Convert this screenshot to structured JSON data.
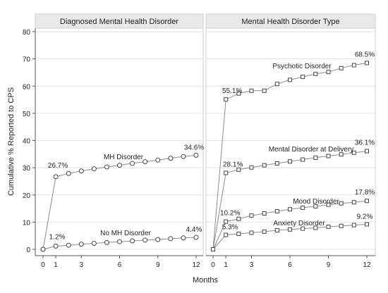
{
  "chart_data": [
    {
      "type": "line",
      "title": "Diagnosed Mental Health Disorder",
      "ylabel": "Cumulative % Reported to CPS",
      "xlabel": "Months",
      "ylim": [
        0,
        80
      ],
      "xlim": [
        0,
        12
      ],
      "yticks": [
        "0",
        "10",
        "20",
        "30",
        "40",
        "50",
        "60",
        "70",
        "80"
      ],
      "xticks": [
        "0",
        "1",
        "3",
        "6",
        "9",
        "12"
      ],
      "grid": true,
      "x": [
        0,
        1,
        2,
        3,
        4,
        5,
        6,
        7,
        8,
        9,
        10,
        11,
        12
      ],
      "series": [
        {
          "name": "MH Disorder",
          "marker": "circle",
          "values": [
            0,
            26.7,
            27.9,
            28.8,
            29.6,
            30.3,
            30.9,
            31.6,
            32.2,
            32.8,
            33.5,
            34.1,
            34.6
          ],
          "point_labels": [
            {
              "x": 1,
              "text": "26.7%"
            },
            {
              "x": 12,
              "text": "34.6%"
            }
          ]
        },
        {
          "name": "No MH Disorder",
          "marker": "circle",
          "values": [
            0,
            1.2,
            1.5,
            1.9,
            2.2,
            2.5,
            2.8,
            3.1,
            3.4,
            3.6,
            3.9,
            4.2,
            4.4
          ],
          "point_labels": [
            {
              "x": 1,
              "text": "1.2%"
            },
            {
              "x": 12,
              "text": "4.4%"
            }
          ]
        }
      ]
    },
    {
      "type": "line",
      "title": "Mental Health Disorder Type",
      "ylim": [
        0,
        80
      ],
      "xlim": [
        0,
        12
      ],
      "xticks": [
        "0",
        "1",
        "3",
        "6",
        "9",
        "12"
      ],
      "grid": true,
      "x": [
        0,
        1,
        2,
        3,
        4,
        5,
        6,
        7,
        8,
        9,
        10,
        11,
        12
      ],
      "series": [
        {
          "name": "Psychotic Disorder",
          "marker": "square",
          "values": [
            0,
            55.1,
            57.3,
            58.3,
            58.3,
            60.8,
            62.3,
            63.4,
            64.5,
            65.2,
            66.6,
            67.7,
            68.5
          ],
          "point_labels": [
            {
              "x": 1,
              "text": "55.1%"
            },
            {
              "x": 12,
              "text": "68.5%"
            }
          ]
        },
        {
          "name": "Mental Disorder at Delivery",
          "marker": "square",
          "values": [
            0,
            28.1,
            29.3,
            30.1,
            30.9,
            31.6,
            32.3,
            33.0,
            33.7,
            34.3,
            34.9,
            35.5,
            36.1
          ],
          "point_labels": [
            {
              "x": 1,
              "text": "28.1%"
            },
            {
              "x": 12,
              "text": "36.1%"
            }
          ]
        },
        {
          "name": "Mood Disorder",
          "marker": "square",
          "values": [
            0,
            10.2,
            11.2,
            12.4,
            13.2,
            14.0,
            14.7,
            15.3,
            15.8,
            16.4,
            16.9,
            17.3,
            17.8
          ],
          "point_labels": [
            {
              "x": 1,
              "text": "10.2%"
            },
            {
              "x": 12,
              "text": "17.8%"
            }
          ]
        },
        {
          "name": "Anxiety Disorder",
          "marker": "square",
          "values": [
            0,
            5.3,
            5.7,
            6.1,
            6.5,
            7.0,
            7.3,
            7.6,
            7.9,
            8.3,
            8.6,
            8.9,
            9.2
          ],
          "point_labels": [
            {
              "x": 1,
              "text": "5.3%"
            },
            {
              "x": 12,
              "text": "9.2%"
            }
          ]
        }
      ]
    }
  ]
}
